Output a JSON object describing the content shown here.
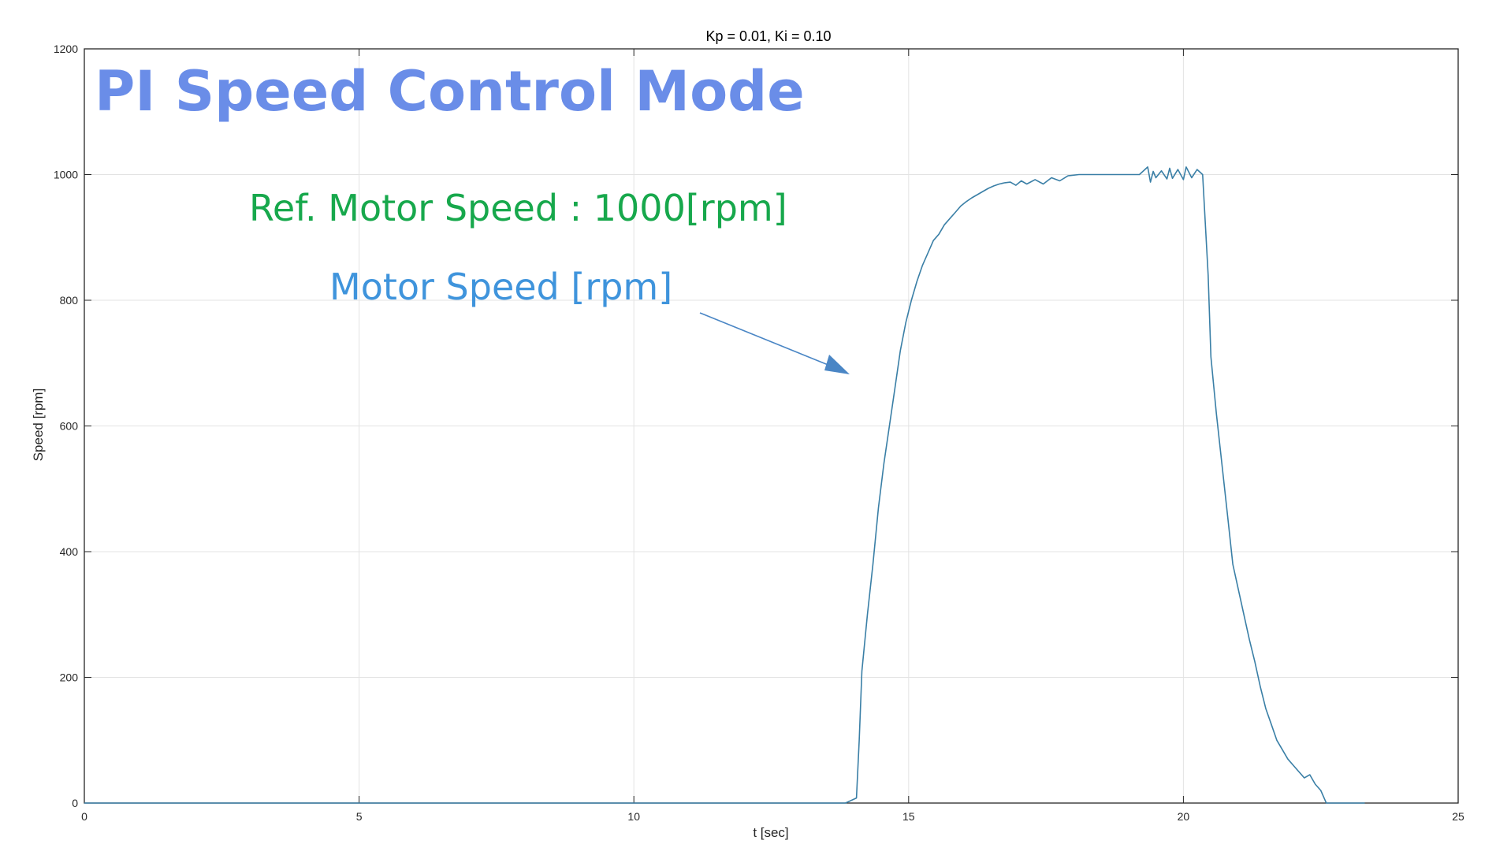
{
  "chart_data": {
    "type": "line",
    "title": "Kp = 0.01, Ki = 0.10",
    "xlabel": "t [sec]",
    "ylabel": "Speed [rpm]",
    "xlim": [
      0,
      25
    ],
    "ylim": [
      0,
      1200
    ],
    "xticks": [
      0,
      5,
      10,
      15,
      20,
      25
    ],
    "yticks": [
      0,
      200,
      400,
      600,
      800,
      1000,
      1200
    ],
    "grid": true,
    "series": [
      {
        "color": "#3a7fa6",
        "x": [
          0,
          13.85,
          14.05,
          14.1,
          14.15,
          14.25,
          14.35,
          14.45,
          14.55,
          14.65,
          14.75,
          14.85,
          14.95,
          15.05,
          15.15,
          15.25,
          15.35,
          15.45,
          15.55,
          15.65,
          15.75,
          15.85,
          15.95,
          16.05,
          16.15,
          16.25,
          16.35,
          16.45,
          16.55,
          16.65,
          16.75,
          16.85,
          16.95,
          17.05,
          17.15,
          17.3,
          17.45,
          17.6,
          17.75,
          17.9,
          18.1,
          18.4,
          18.8,
          19.2,
          19.35,
          19.4,
          19.45,
          19.5,
          19.6,
          19.7,
          19.75,
          19.8,
          19.9,
          20.0,
          20.05,
          20.15,
          20.25,
          20.35,
          20.45,
          20.5,
          20.6,
          20.7,
          20.8,
          20.9,
          21.0,
          21.1,
          21.2,
          21.3,
          21.4,
          21.5,
          21.6,
          21.7,
          21.8,
          21.9,
          22.0,
          22.1,
          22.2,
          22.3,
          22.4,
          22.5,
          22.6,
          22.7,
          22.8,
          22.9,
          23.0,
          23.3
        ],
        "values": [
          0,
          0,
          8,
          100,
          210,
          300,
          380,
          470,
          540,
          600,
          660,
          720,
          765,
          800,
          830,
          855,
          875,
          895,
          905,
          920,
          930,
          940,
          950,
          957,
          963,
          968,
          973,
          978,
          982,
          985,
          987,
          988,
          983,
          990,
          985,
          992,
          985,
          995,
          990,
          998,
          1000,
          1000,
          1000,
          1000,
          1012,
          988,
          1005,
          995,
          1006,
          993,
          1010,
          994,
          1008,
          992,
          1012,
          995,
          1008,
          1000,
          840,
          710,
          620,
          540,
          460,
          380,
          340,
          300,
          260,
          225,
          185,
          150,
          125,
          100,
          85,
          70,
          60,
          50,
          40,
          45,
          30,
          20,
          0,
          0,
          0,
          0,
          0,
          0
        ]
      }
    ],
    "annotations": [
      {
        "text": "PI Speed Control Mode",
        "color": "#6a8de8"
      },
      {
        "text": "Ref. Motor Speed : 1000[rpm]",
        "color": "#17a84c"
      },
      {
        "text": "Motor Speed [rpm]",
        "color": "#3f94dc"
      }
    ]
  }
}
